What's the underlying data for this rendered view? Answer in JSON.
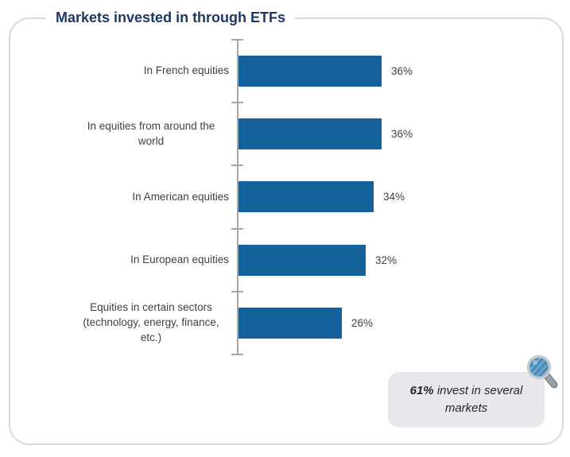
{
  "panel": {
    "title": "Markets invested in through ETFs"
  },
  "chart_data": {
    "type": "bar",
    "orientation": "horizontal",
    "title": "Markets invested in through ETFs",
    "categories": [
      "In French equities",
      "In equities from around the world",
      "In American equities",
      "In European equities",
      "Equities in certain sectors (technology, energy, finance, etc.)"
    ],
    "values": [
      36,
      36,
      34,
      32,
      26
    ],
    "value_labels": [
      "36%",
      "36%",
      "34%",
      "32%",
      "26%"
    ],
    "xlabel": "",
    "ylabel": "",
    "xlim": [
      0,
      40
    ],
    "grid": false,
    "legend": null,
    "bar_color": "#15619b"
  },
  "callout": {
    "highlight": "61%",
    "text": "invest in several markets"
  },
  "icons": {
    "magnifier": "magnifier-icon"
  },
  "colors": {
    "bar": "#15619b",
    "title": "#1f3864",
    "label": "#404040",
    "axis": "#a6a6a6",
    "panel_border": "#d9d9d9",
    "callout_bg": "#e8e7ec",
    "callout_text": "#26262e",
    "lens_fill": "#4b8cba",
    "lens_hatch": "#7aaed3",
    "lens_rim": "#c6cbd0",
    "handle": "#989fa5"
  }
}
